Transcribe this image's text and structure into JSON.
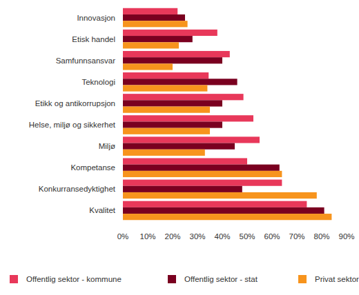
{
  "chart_data": {
    "type": "bar",
    "orientation": "horizontal",
    "categories": [
      "Innovasjon",
      "Etisk handel",
      "Samfunnsansvar",
      "Teknologi",
      "Etikk og antikorrupsjon",
      "Helse, miljø og sikkerhet",
      "Miljø",
      "Kompetanse",
      "Konkurransedyktighet",
      "Kvalitet"
    ],
    "series": [
      {
        "name": "Offentlig sektor - kommune",
        "color": "#e8385a",
        "values": [
          22,
          38,
          43,
          34.5,
          48.5,
          52.5,
          55,
          50,
          64,
          74
        ]
      },
      {
        "name": "Offentlig sektor - stat",
        "color": "#7a0020",
        "values": [
          25,
          28,
          40,
          46,
          40,
          40,
          45,
          63,
          48,
          81
        ]
      },
      {
        "name": "Privat sektor",
        "color": "#f7941d",
        "values": [
          26,
          22.5,
          20,
          34,
          35,
          35,
          33,
          64,
          78,
          84
        ]
      }
    ],
    "xlim": [
      0,
      90
    ],
    "xticks": [
      {
        "value": 0,
        "label": "0%"
      },
      {
        "value": 10,
        "label": "10%"
      },
      {
        "value": 20,
        "label": "20%"
      },
      {
        "value": 30,
        "label": "30%"
      },
      {
        "value": 40,
        "label": "40%"
      },
      {
        "value": 50,
        "label": "50%"
      },
      {
        "value": 60,
        "label": "60%"
      },
      {
        "value": 70,
        "label": "70%"
      },
      {
        "value": 80,
        "label": "80%"
      },
      {
        "value": 90,
        "label": "90%"
      }
    ],
    "grid": false,
    "legend": "bottom"
  }
}
